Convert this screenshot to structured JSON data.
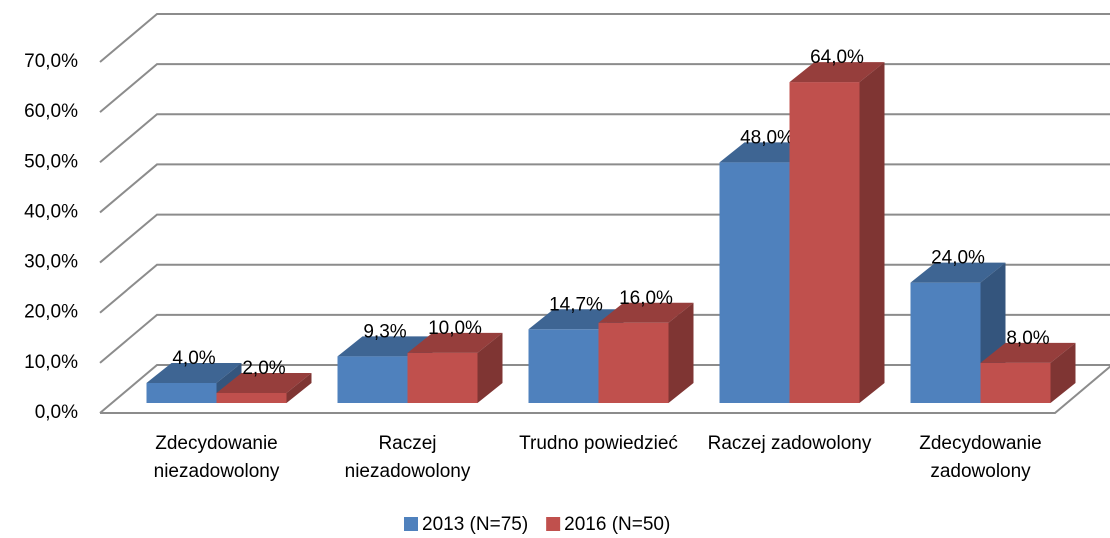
{
  "chart_data": {
    "type": "bar3d",
    "categories": [
      "Zdecydowanie niezadowolony",
      "Raczej niezadowolony",
      "Trudno powiedzieć",
      "Raczej zadowolony",
      "Zdecydowanie zadowolony"
    ],
    "series": [
      {
        "name": "2013 (N=75)",
        "color": "#4f81bd",
        "values": [
          4.0,
          9.3,
          14.7,
          48.0,
          24.0
        ],
        "value_labels": [
          "4,0%",
          "9,3%",
          "14,7%",
          "48,0%",
          "24,0%"
        ]
      },
      {
        "name": "2016 (N=50)",
        "color": "#c0504d",
        "values": [
          2.0,
          10.0,
          16.0,
          64.0,
          8.0
        ],
        "value_labels": [
          "2,0%",
          "10,0%",
          "16,0%",
          "64,0%",
          "8,0%"
        ]
      }
    ],
    "ylim": [
      0,
      70
    ],
    "yticks": [
      {
        "value": 0,
        "label": "0,0%"
      },
      {
        "value": 10,
        "label": "10,0%"
      },
      {
        "value": 20,
        "label": "20,0%"
      },
      {
        "value": 30,
        "label": "30,0%"
      },
      {
        "value": 40,
        "label": "40,0%"
      },
      {
        "value": 50,
        "label": "50,0%"
      },
      {
        "value": 60,
        "label": "60,0%"
      },
      {
        "value": 70,
        "label": "70,0%"
      }
    ],
    "grid": true,
    "legend": "bottom"
  }
}
